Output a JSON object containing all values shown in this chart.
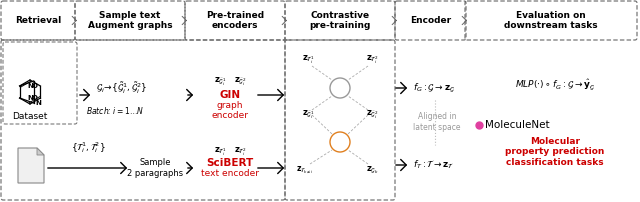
{
  "bg_color": "#ffffff",
  "fig_width": 6.4,
  "fig_height": 2.02,
  "dpi": 100,
  "header_labels": [
    "Retrieval",
    "Sample text\nAugment graphs",
    "Pre-trained\nencoders",
    "Contrastive\npre-training",
    "Encoder",
    "Evaluation on\ndownstream tasks"
  ],
  "gin_color": "#cc0000",
  "scibert_color": "#cc0000",
  "mol_red_color": "#cc0000",
  "pink_color": "#e040a0",
  "orange_color": "#e08020",
  "gray_color": "#888888",
  "box_edge_color": "#666666",
  "arrow_color": "#333333"
}
